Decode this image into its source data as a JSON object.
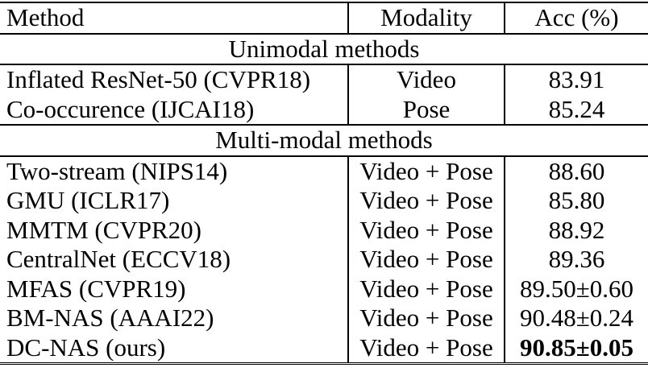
{
  "header": {
    "method": "Method",
    "modality": "Modality",
    "acc": "Acc (%)"
  },
  "sections": [
    {
      "title": "Unimodal methods",
      "rows": [
        {
          "method": "Inflated ResNet-50 (CVPR18)",
          "modality": "Video",
          "acc": "83.91"
        },
        {
          "method": "Co-occurence (IJCAI18)",
          "modality": "Pose",
          "acc": "85.24"
        }
      ]
    },
    {
      "title": "Multi-modal methods",
      "rows": [
        {
          "method": "Two-stream (NIPS14)",
          "modality": "Video + Pose",
          "acc": "88.60"
        },
        {
          "method": "GMU (ICLR17)",
          "modality": "Video + Pose",
          "acc": "85.80"
        },
        {
          "method": "MMTM (CVPR20)",
          "modality": "Video + Pose",
          "acc": "88.92"
        },
        {
          "method": "CentralNet (ECCV18)",
          "modality": "Video + Pose",
          "acc": "89.36"
        },
        {
          "method": "MFAS (CVPR19)",
          "modality": "Video + Pose",
          "acc": "89.50±0.60"
        },
        {
          "method": "BM-NAS (AAAI22)",
          "modality": "Video + Pose",
          "acc": "90.48±0.24"
        },
        {
          "method": "DC-NAS (ours)",
          "modality": "Video + Pose",
          "acc": "90.85±0.05",
          "bold": true
        }
      ]
    }
  ]
}
